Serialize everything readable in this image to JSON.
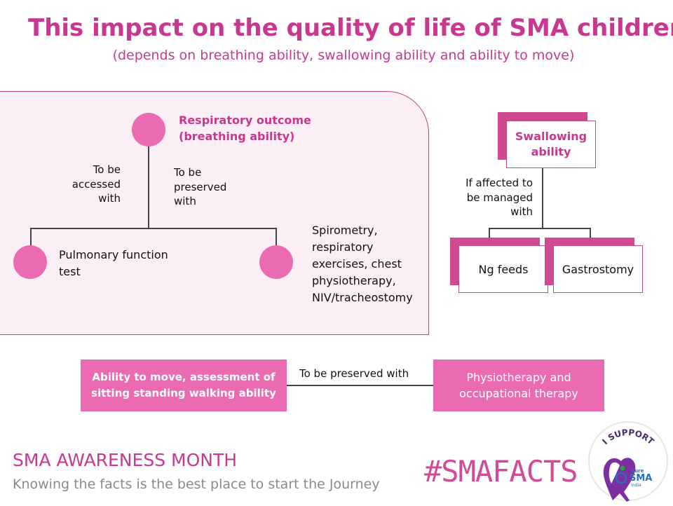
{
  "header": {
    "title": "This impact on the quality of life of SMA children",
    "subtitle": "(depends on breathing ability, swallowing ability and ability to move)"
  },
  "respiratory": {
    "title_line1": "Respiratory outcome",
    "title_line2": "(breathing ability)",
    "left_branch_label": [
      "To be",
      "accessed",
      "with"
    ],
    "right_branch_label": [
      "To be",
      "preserved",
      "with"
    ],
    "left_outcome": [
      "Pulmonary function",
      "test"
    ],
    "right_outcome": [
      "Spirometry,",
      "respiratory",
      "exercises, chest",
      "physiotherapy,",
      "NIV/tracheostomy"
    ]
  },
  "swallowing": {
    "title_line1": "Swallowing",
    "title_line2": "ability",
    "branch_label": [
      "If affected to",
      "be managed",
      "with"
    ],
    "option1": "Ng feeds",
    "option2": "Gastrostomy"
  },
  "movement": {
    "left_box": [
      "Ability to move, assessment of",
      "sitting standing walking ability"
    ],
    "connector_label": "To be preserved with",
    "right_box": [
      "Physiotherapy and",
      "occupational therapy"
    ]
  },
  "footer": {
    "title": "SMA AWARENESS MONTH",
    "tagline": "Knowing the facts is the best place to start the Journey",
    "hashtag": "#SMAFACTS",
    "logo_text_top": "I SUPPORT",
    "logo_text_cure": "Cure",
    "logo_text_sma": "SMA",
    "logo_text_india": "India"
  },
  "colors": {
    "accent": "#c8388e",
    "circle": "#ea6bb1",
    "panel": "#fceef5",
    "ribbon": "#6a1b9a"
  }
}
